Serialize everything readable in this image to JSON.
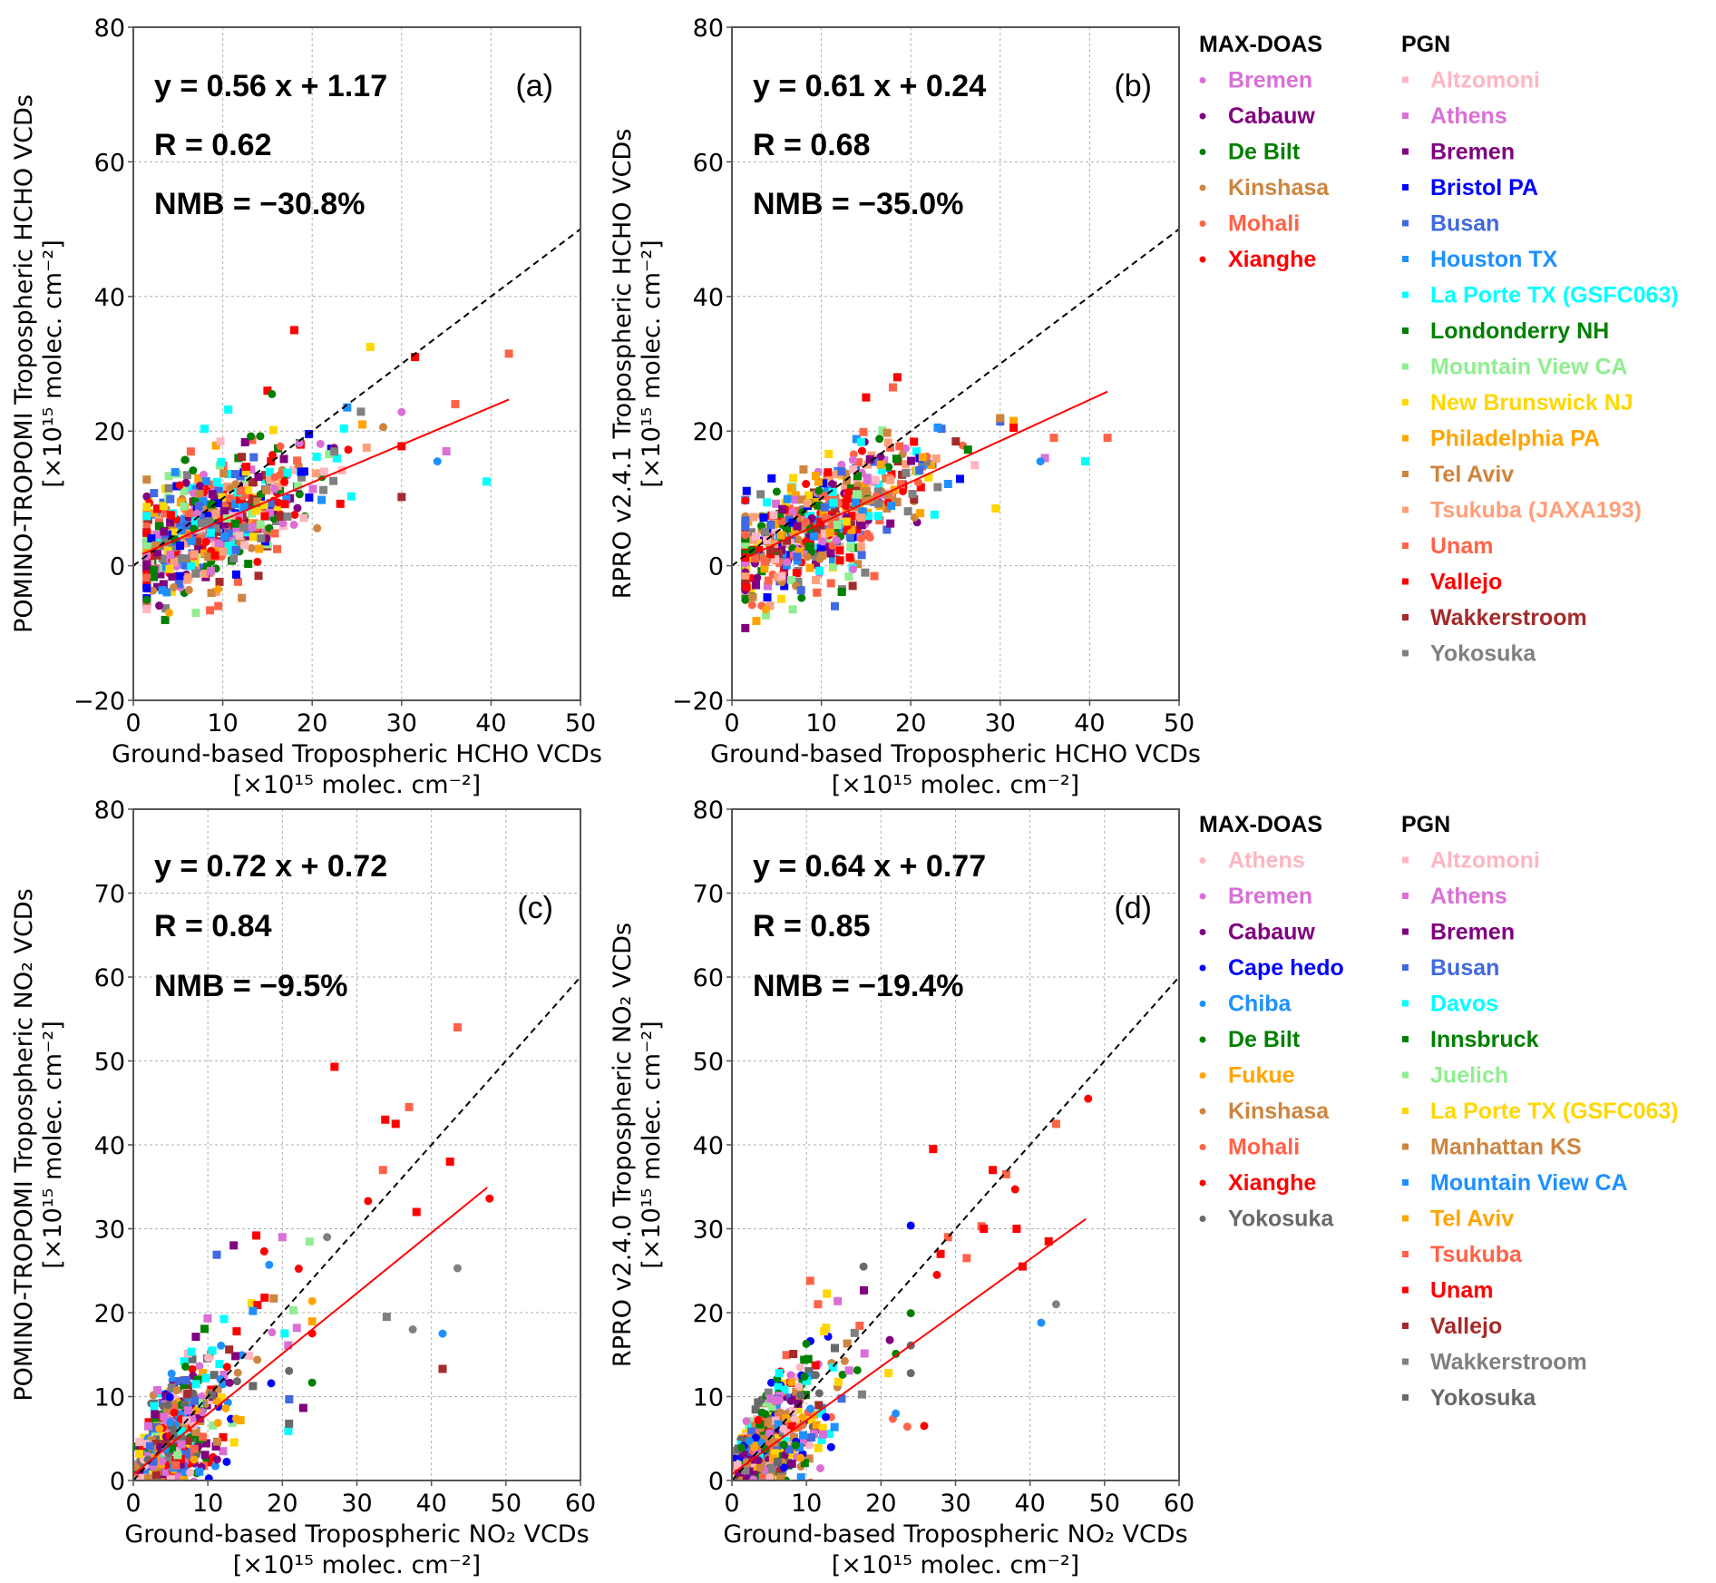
{
  "chart_data": [
    {
      "type": "scatter",
      "panel": "(a)",
      "species": "HCHO",
      "ylabel": "POMINO-TROPOMI Tropospheric HCHO VCDs",
      "ylabel_units": "[×10¹⁵ molec. cm⁻²]",
      "xlabel": "Ground-based Tropospheric HCHO VCDs",
      "xlabel_units": "[×10¹⁵ molec. cm⁻²]",
      "xlim": [
        0,
        50
      ],
      "ylim": [
        -20,
        80
      ],
      "xticks": [
        0,
        10,
        20,
        30,
        40,
        50
      ],
      "yticks": [
        -20,
        0,
        20,
        40,
        60,
        80
      ],
      "grid": true,
      "stats": {
        "equation": "y = 0.56 x + 1.17",
        "r": "R = 0.62",
        "nmb": "NMB = −30.8%"
      },
      "fit": {
        "slope": 0.56,
        "intercept": 1.17,
        "x_range": [
          1,
          42
        ],
        "color": "#ff0000"
      },
      "one_to_one": {
        "x_range": [
          0,
          50
        ],
        "style": "dashed",
        "color": "#000000"
      },
      "cloud": {
        "x_center": 9,
        "x_spread": 5.5,
        "y_noise": 4.5,
        "count": 620,
        "seed": 11
      },
      "outliers": [
        {
          "x": 18,
          "y": 35,
          "site": "Vallejo",
          "marker": "square"
        },
        {
          "x": 26.5,
          "y": 32.5,
          "site": "New Brunswick NJ",
          "marker": "square"
        },
        {
          "x": 31.5,
          "y": 31,
          "site": "Vallejo",
          "marker": "square"
        },
        {
          "x": 42,
          "y": 31.5,
          "site": "Unam",
          "marker": "square"
        },
        {
          "x": 36,
          "y": 24,
          "site": "Unam",
          "marker": "square"
        },
        {
          "x": 39.5,
          "y": 12.5,
          "site": "La Porte TX (GSFC063)",
          "marker": "square"
        },
        {
          "x": 35,
          "y": 17,
          "site": "Athens",
          "marker": "square"
        },
        {
          "x": 34,
          "y": 15.5,
          "site": "Houston TX",
          "marker": "circle"
        },
        {
          "x": 15,
          "y": 26,
          "site": "Vallejo",
          "marker": "square"
        },
        {
          "x": 15.5,
          "y": 25.5,
          "site": "De Bilt",
          "marker": "circle"
        },
        {
          "x": 4,
          "y": -7,
          "site": "Philadelphia PA",
          "marker": "circle"
        },
        {
          "x": 7,
          "y": -7,
          "site": "Mountain View CA",
          "marker": "square"
        },
        {
          "x": 9.5,
          "y": -6,
          "site": "Unam",
          "marker": "square"
        },
        {
          "x": 9.5,
          "y": -3.5,
          "site": "Philadelphia PA",
          "marker": "circle"
        },
        {
          "x": 14,
          "y": -1.5,
          "site": "Wakkerstroom",
          "marker": "square"
        }
      ]
    },
    {
      "type": "scatter",
      "panel": "(b)",
      "species": "HCHO",
      "ylabel": "RPRO v2.4.1 Tropospheric HCHO VCDs",
      "ylabel_units": "[×10¹⁵ molec. cm⁻²]",
      "xlabel": "Ground-based Tropospheric HCHO VCDs",
      "xlabel_units": "[×10¹⁵ molec. cm⁻²]",
      "xlim": [
        0,
        50
      ],
      "ylim": [
        -20,
        80
      ],
      "xticks": [
        0,
        10,
        20,
        30,
        40,
        50
      ],
      "yticks": [
        -20,
        0,
        20,
        40,
        60,
        80
      ],
      "grid": true,
      "stats": {
        "equation": "y = 0.61 x + 0.24",
        "r": "R = 0.68",
        "nmb": "NMB = −35.0%"
      },
      "fit": {
        "slope": 0.61,
        "intercept": 0.24,
        "x_range": [
          1,
          42
        ],
        "color": "#ff0000"
      },
      "one_to_one": {
        "x_range": [
          0,
          50
        ],
        "style": "dashed",
        "color": "#000000"
      },
      "cloud": {
        "x_center": 9,
        "x_spread": 5.5,
        "y_noise": 4.0,
        "count": 620,
        "seed": 23
      },
      "outliers": [
        {
          "x": 18.5,
          "y": 28,
          "site": "Vallejo",
          "marker": "square"
        },
        {
          "x": 18,
          "y": 26.5,
          "site": "Unam",
          "marker": "square"
        },
        {
          "x": 15,
          "y": 25,
          "site": "Vallejo",
          "marker": "square"
        },
        {
          "x": 31.5,
          "y": 21.5,
          "site": "Philadelphia PA",
          "marker": "square"
        },
        {
          "x": 31.5,
          "y": 20.5,
          "site": "Vallejo",
          "marker": "square"
        },
        {
          "x": 36,
          "y": 19,
          "site": "Unam",
          "marker": "square"
        },
        {
          "x": 42,
          "y": 19,
          "site": "Unam",
          "marker": "square"
        },
        {
          "x": 35,
          "y": 16,
          "site": "Athens",
          "marker": "square"
        },
        {
          "x": 34.5,
          "y": 15.5,
          "site": "Houston TX",
          "marker": "circle"
        },
        {
          "x": 39.5,
          "y": 15.5,
          "site": "La Porte TX (GSFC063)",
          "marker": "square"
        },
        {
          "x": 29.5,
          "y": 8.5,
          "site": "New Brunswick NJ",
          "marker": "square"
        },
        {
          "x": 3.8,
          "y": -6.5,
          "site": "Philadelphia PA",
          "marker": "circle"
        },
        {
          "x": 6.8,
          "y": -6.5,
          "site": "Mountain View CA",
          "marker": "square"
        },
        {
          "x": 9.5,
          "y": -4,
          "site": "Unam",
          "marker": "square"
        },
        {
          "x": 13.5,
          "y": -3,
          "site": "Wakkerstroom",
          "marker": "square"
        }
      ]
    },
    {
      "type": "scatter",
      "panel": "(c)",
      "species": "NO2",
      "ylabel": "POMINO-TROPOMI Tropospheric NO₂ VCDs",
      "ylabel_units": "[×10¹⁵ molec. cm⁻²]",
      "xlabel": "Ground-based Tropospheric NO₂ VCDs",
      "xlabel_units": "[×10¹⁵ molec. cm⁻²]",
      "xlim": [
        0,
        60
      ],
      "ylim": [
        0,
        80
      ],
      "xticks": [
        0,
        10,
        20,
        30,
        40,
        50,
        60
      ],
      "yticks": [
        0,
        10,
        20,
        30,
        40,
        50,
        60,
        70,
        80
      ],
      "grid": true,
      "stats": {
        "equation": "y = 0.72 x + 0.72",
        "r": "R = 0.84",
        "nmb": "NMB = −9.5%"
      },
      "fit": {
        "slope": 0.72,
        "intercept": 0.72,
        "x_range": [
          0,
          47.5
        ],
        "color": "#ff0000"
      },
      "one_to_one": {
        "x_range": [
          0,
          60
        ],
        "style": "dashed",
        "color": "#000000"
      },
      "cloud": {
        "x_center": 6,
        "x_spread": 5.0,
        "y_noise": 3.5,
        "count": 620,
        "seed": 37
      },
      "outliers": [
        {
          "x": 43.5,
          "y": 54,
          "site": "Unam",
          "marker": "square"
        },
        {
          "x": 27,
          "y": 49.3,
          "site": "Vallejo",
          "marker": "square"
        },
        {
          "x": 37,
          "y": 44.5,
          "site": "Unam",
          "marker": "square"
        },
        {
          "x": 33.8,
          "y": 43,
          "site": "Vallejo",
          "marker": "square"
        },
        {
          "x": 35.2,
          "y": 42.5,
          "site": "Vallejo",
          "marker": "square"
        },
        {
          "x": 42.5,
          "y": 38,
          "site": "Vallejo",
          "marker": "square"
        },
        {
          "x": 33.5,
          "y": 37,
          "site": "Unam",
          "marker": "square"
        },
        {
          "x": 31.5,
          "y": 33.3,
          "site": "Xianghe",
          "marker": "circle"
        },
        {
          "x": 38,
          "y": 32,
          "site": "Vallejo",
          "marker": "square"
        },
        {
          "x": 47.8,
          "y": 33.6,
          "site": "Xianghe",
          "marker": "circle"
        },
        {
          "x": 43.5,
          "y": 25.3,
          "site": "Yokosuka",
          "marker": "circle"
        },
        {
          "x": 41.5,
          "y": 17.5,
          "site": "Chiba",
          "marker": "circle"
        },
        {
          "x": 41.5,
          "y": 13.3,
          "site": "Wakkerstroom",
          "marker": "square"
        },
        {
          "x": 37.5,
          "y": 18,
          "site": "Yokosuka",
          "marker": "circle"
        },
        {
          "x": 34,
          "y": 19.5,
          "site": "Yokosuka",
          "marker": "square"
        },
        {
          "x": 26,
          "y": 29,
          "site": "Yokosuka",
          "marker": "circle"
        },
        {
          "x": 20,
          "y": 29,
          "site": "Athens",
          "marker": "square"
        },
        {
          "x": 16.5,
          "y": 29.2,
          "site": "Vallejo",
          "marker": "square"
        },
        {
          "x": 11.2,
          "y": 26.9,
          "site": "Busan",
          "marker": "square"
        }
      ]
    },
    {
      "type": "scatter",
      "panel": "(d)",
      "species": "NO2",
      "ylabel": "RPRO v2.4.0 Tropospheric NO₂ VCDs",
      "ylabel_units": "[×10¹⁵ molec. cm⁻²]",
      "xlabel": "Ground-based Tropospheric NO₂ VCDs",
      "xlabel_units": "[×10¹⁵ molec. cm⁻²]",
      "xlim": [
        0,
        60
      ],
      "ylim": [
        0,
        80
      ],
      "xticks": [
        0,
        10,
        20,
        30,
        40,
        50,
        60
      ],
      "yticks": [
        0,
        10,
        20,
        30,
        40,
        50,
        60,
        70,
        80
      ],
      "grid": true,
      "stats": {
        "equation": "y = 0.64 x + 0.77",
        "r": "R = 0.85",
        "nmb": "NMB = −19.4%"
      },
      "fit": {
        "slope": 0.64,
        "intercept": 0.77,
        "x_range": [
          0,
          47.5
        ],
        "color": "#ff0000"
      },
      "one_to_one": {
        "x_range": [
          0,
          60
        ],
        "style": "dashed",
        "color": "#000000"
      },
      "cloud": {
        "x_center": 6,
        "x_spread": 5.0,
        "y_noise": 3.2,
        "count": 620,
        "seed": 53
      },
      "outliers": [
        {
          "x": 47.8,
          "y": 45.5,
          "site": "Xianghe",
          "marker": "circle"
        },
        {
          "x": 43.5,
          "y": 42.5,
          "site": "Unam",
          "marker": "square"
        },
        {
          "x": 27,
          "y": 39.5,
          "site": "Vallejo",
          "marker": "square"
        },
        {
          "x": 35,
          "y": 37,
          "site": "Vallejo",
          "marker": "square"
        },
        {
          "x": 36.8,
          "y": 36.5,
          "site": "Unam",
          "marker": "square"
        },
        {
          "x": 38,
          "y": 34.7,
          "site": "Xianghe",
          "marker": "circle"
        },
        {
          "x": 33.5,
          "y": 30.3,
          "site": "Unam",
          "marker": "square"
        },
        {
          "x": 33.8,
          "y": 30,
          "site": "Vallejo",
          "marker": "square"
        },
        {
          "x": 38.2,
          "y": 30,
          "site": "Vallejo",
          "marker": "square"
        },
        {
          "x": 42.5,
          "y": 28.5,
          "site": "Vallejo",
          "marker": "square"
        },
        {
          "x": 29,
          "y": 29,
          "site": "Unam",
          "marker": "square"
        },
        {
          "x": 39,
          "y": 25.5,
          "site": "Vallejo",
          "marker": "square"
        },
        {
          "x": 28,
          "y": 27,
          "site": "Vallejo",
          "marker": "square"
        },
        {
          "x": 31.5,
          "y": 26.5,
          "site": "Unam",
          "marker": "square"
        },
        {
          "x": 27.5,
          "y": 24.5,
          "site": "Xianghe",
          "marker": "circle"
        },
        {
          "x": 43.5,
          "y": 21,
          "site": "Yokosuka",
          "marker": "circle"
        },
        {
          "x": 41.5,
          "y": 18.8,
          "site": "Chiba",
          "marker": "circle"
        },
        {
          "x": 25.8,
          "y": 6.5,
          "site": "Xianghe",
          "marker": "circle"
        },
        {
          "x": 10.5,
          "y": 23.8,
          "site": "Unam",
          "marker": "square"
        }
      ]
    }
  ],
  "legends": {
    "hcho": {
      "max_doas_title": "MAX-DOAS",
      "pgn_title": "PGN",
      "max_doas": [
        {
          "label": "Bremen",
          "color": "#da70d6"
        },
        {
          "label": "Cabauw",
          "color": "#800080"
        },
        {
          "label": "De Bilt",
          "color": "#008000"
        },
        {
          "label": "Kinshasa",
          "color": "#cd853f"
        },
        {
          "label": "Mohali",
          "color": "#ff6347"
        },
        {
          "label": "Xianghe",
          "color": "#ff0000"
        }
      ],
      "pgn": [
        {
          "label": "Altzomoni",
          "color": "#ffb6c1"
        },
        {
          "label": "Athens",
          "color": "#da70d6"
        },
        {
          "label": "Bremen",
          "color": "#800080"
        },
        {
          "label": "Bristol PA",
          "color": "#0000ff"
        },
        {
          "label": "Busan",
          "color": "#4169e1"
        },
        {
          "label": "Houston TX",
          "color": "#1e90ff"
        },
        {
          "label": "La Porte TX (GSFC063)",
          "color": "#00ffff"
        },
        {
          "label": "Londonderry NH",
          "color": "#008000"
        },
        {
          "label": "Mountain View CA",
          "color": "#90ee90"
        },
        {
          "label": "New Brunswick NJ",
          "color": "#ffd700"
        },
        {
          "label": "Philadelphia PA",
          "color": "#ffa500"
        },
        {
          "label": "Tel Aviv",
          "color": "#cd853f"
        },
        {
          "label": "Tsukuba (JAXA193)",
          "color": "#ffa07a"
        },
        {
          "label": "Unam",
          "color": "#ff6347"
        },
        {
          "label": "Vallejo",
          "color": "#ff0000"
        },
        {
          "label": "Wakkerstroom",
          "color": "#a52a2a"
        },
        {
          "label": "Yokosuka",
          "color": "#808080"
        }
      ]
    },
    "no2": {
      "max_doas_title": "MAX-DOAS",
      "pgn_title": "PGN",
      "max_doas": [
        {
          "label": "Athens",
          "color": "#ffb6c1"
        },
        {
          "label": "Bremen",
          "color": "#da70d6"
        },
        {
          "label": "Cabauw",
          "color": "#800080"
        },
        {
          "label": "Cape hedo",
          "color": "#0000ff"
        },
        {
          "label": "Chiba",
          "color": "#1e90ff"
        },
        {
          "label": "De Bilt",
          "color": "#008000"
        },
        {
          "label": "Fukue",
          "color": "#ffa500"
        },
        {
          "label": "Kinshasa",
          "color": "#cd853f"
        },
        {
          "label": "Mohali",
          "color": "#ff6347"
        },
        {
          "label": "Xianghe",
          "color": "#ff0000"
        },
        {
          "label": "Yokosuka",
          "color": "#696969"
        }
      ],
      "pgn": [
        {
          "label": "Altzomoni",
          "color": "#ffb6c1"
        },
        {
          "label": "Athens",
          "color": "#da70d6"
        },
        {
          "label": "Bremen",
          "color": "#800080"
        },
        {
          "label": "Busan",
          "color": "#4169e1"
        },
        {
          "label": "Davos",
          "color": "#00ffff"
        },
        {
          "label": "Innsbruck",
          "color": "#008000"
        },
        {
          "label": "Juelich",
          "color": "#90ee90"
        },
        {
          "label": "La Porte TX (GSFC063)",
          "color": "#ffd700"
        },
        {
          "label": "Manhattan KS",
          "color": "#cd853f"
        },
        {
          "label": "Mountain View CA",
          "color": "#1e90ff"
        },
        {
          "label": "Tel Aviv",
          "color": "#ffa500"
        },
        {
          "label": "Tsukuba",
          "color": "#ff6347"
        },
        {
          "label": "Unam",
          "color": "#ff0000"
        },
        {
          "label": "Vallejo",
          "color": "#a52a2a"
        },
        {
          "label": "Wakkerstroom",
          "color": "#808080"
        },
        {
          "label": "Yokosuka",
          "color": "#696969"
        }
      ]
    }
  }
}
